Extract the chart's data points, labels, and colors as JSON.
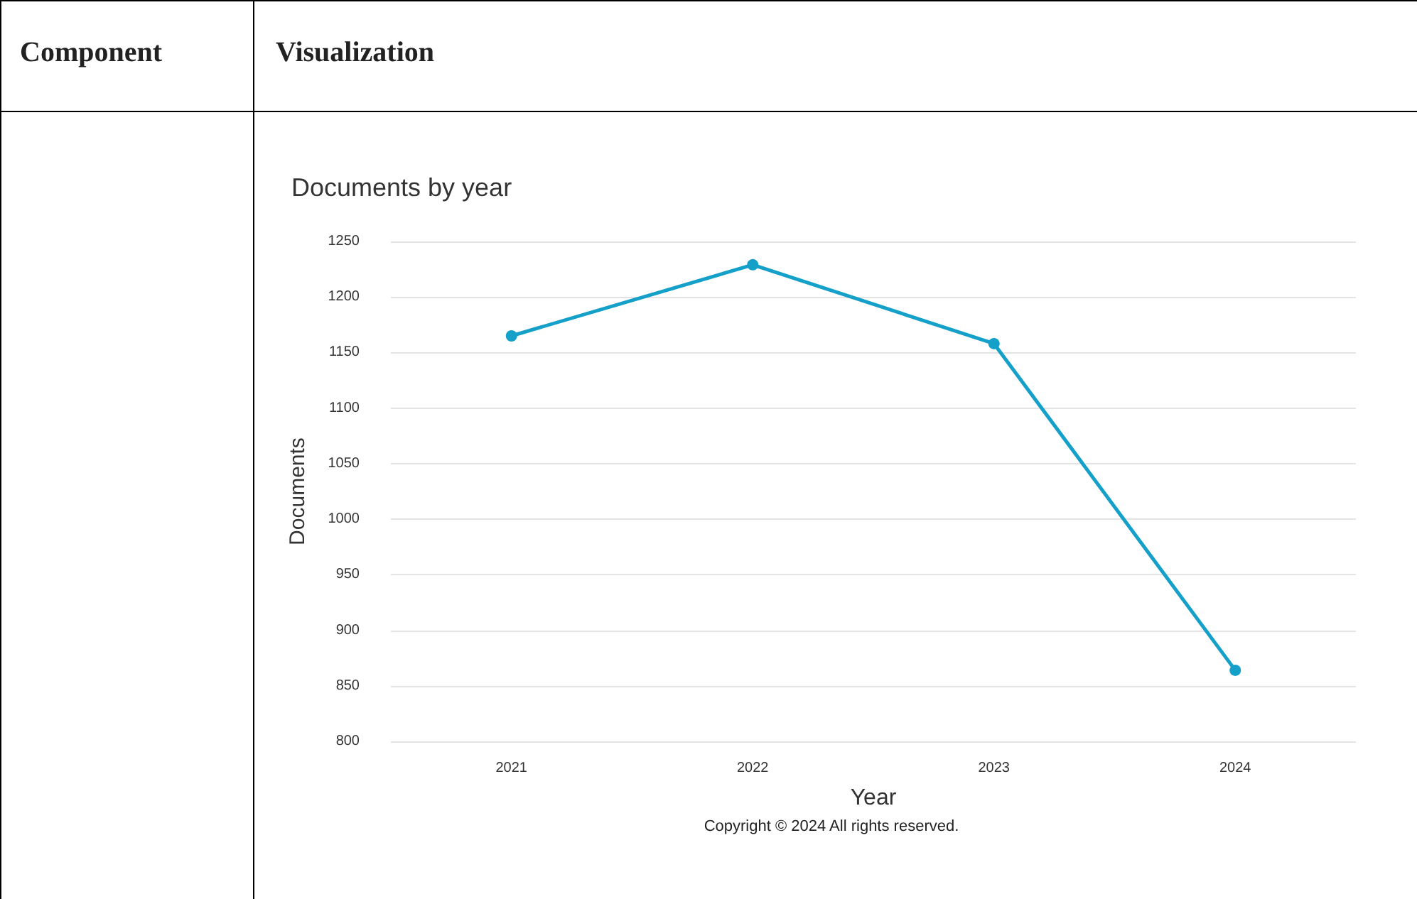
{
  "chart_data": {
    "type": "line",
    "title": "Documents by year",
    "xlabel": "Year",
    "ylabel": "Documents",
    "annotations": [
      "Component",
      "Visualization",
      "Copyright © 2024 All rights reserved."
    ],
    "categories": [
      "2021",
      "2022",
      "2023",
      "2024"
    ],
    "series": [
      {
        "color": "#14a0c8",
        "values": [
          1165,
          1229,
          1158,
          864
        ]
      }
    ],
    "ylim": [
      800,
      1250
    ],
    "yticks": [
      800,
      850,
      900,
      950,
      1000,
      1050,
      1100,
      1150,
      1200,
      1250
    ],
    "grid": "y",
    "marker": "circle",
    "line_style": "solid"
  }
}
